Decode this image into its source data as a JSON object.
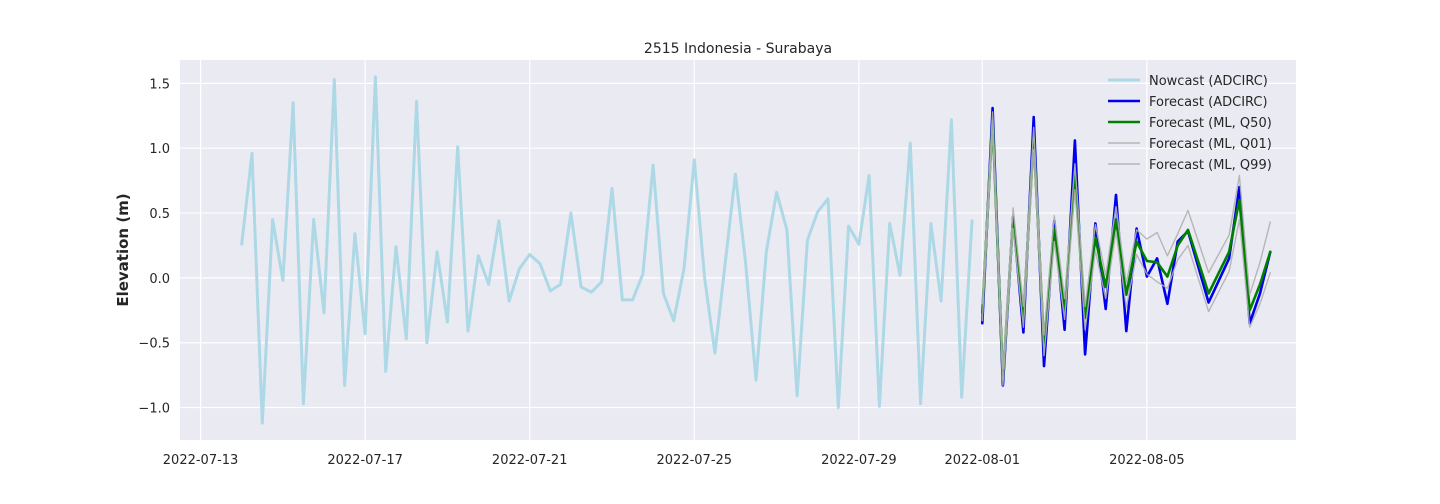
{
  "chart_data": {
    "type": "line",
    "title": "2515 Indonesia - Surabaya",
    "xlabel": "",
    "ylabel": "Elevation (m)",
    "x_ticks": [
      "2022-07-13",
      "2022-07-17",
      "2022-07-21",
      "2022-07-25",
      "2022-07-29",
      "2022-08-01",
      "2022-08-05"
    ],
    "y_ticks": [
      "−1.0",
      "−0.5",
      "0.0",
      "0.5",
      "1.0",
      "1.5"
    ],
    "y_tick_values": [
      -1.0,
      -0.5,
      0.0,
      0.5,
      1.0,
      1.5
    ],
    "xlim": [
      "2022-07-12 12:00",
      "2022-08-08 15:00"
    ],
    "ylim": [
      -1.25,
      1.68
    ],
    "grid": true,
    "legend_position": "top-right",
    "series": [
      {
        "name": "Nowcast (ADCIRC)",
        "color": "#add8e6",
        "width": 3,
        "opacity": 1,
        "x": [
          "2022-07-14 00:00",
          "2022-07-14 06:00",
          "2022-07-14 12:00",
          "2022-07-14 18:00",
          "2022-07-15 00:00",
          "2022-07-15 06:00",
          "2022-07-15 12:00",
          "2022-07-15 18:00",
          "2022-07-16 00:00",
          "2022-07-16 06:00",
          "2022-07-16 12:00",
          "2022-07-16 18:00",
          "2022-07-17 00:00",
          "2022-07-17 06:00",
          "2022-07-17 12:00",
          "2022-07-17 18:00",
          "2022-07-18 00:00",
          "2022-07-18 06:00",
          "2022-07-18 12:00",
          "2022-07-18 18:00",
          "2022-07-19 00:00",
          "2022-07-19 06:00",
          "2022-07-19 12:00",
          "2022-07-19 18:00",
          "2022-07-20 00:00",
          "2022-07-20 06:00",
          "2022-07-20 12:00",
          "2022-07-20 18:00",
          "2022-07-21 00:00",
          "2022-07-21 06:00",
          "2022-07-21 12:00",
          "2022-07-21 18:00",
          "2022-07-22 00:00",
          "2022-07-22 06:00",
          "2022-07-22 12:00",
          "2022-07-22 18:00",
          "2022-07-23 00:00",
          "2022-07-23 06:00",
          "2022-07-23 12:00",
          "2022-07-23 18:00",
          "2022-07-24 00:00",
          "2022-07-24 06:00",
          "2022-07-24 12:00",
          "2022-07-24 18:00",
          "2022-07-25 00:00",
          "2022-07-25 06:00",
          "2022-07-25 12:00",
          "2022-07-26 00:00",
          "2022-07-26 06:00",
          "2022-07-26 12:00",
          "2022-07-26 18:00",
          "2022-07-27 00:00",
          "2022-07-27 06:00",
          "2022-07-27 12:00",
          "2022-07-27 18:00",
          "2022-07-28 00:00",
          "2022-07-28 06:00",
          "2022-07-28 12:00",
          "2022-07-28 18:00",
          "2022-07-29 00:00",
          "2022-07-29 06:00",
          "2022-07-29 12:00",
          "2022-07-29 18:00",
          "2022-07-30 00:00",
          "2022-07-30 06:00",
          "2022-07-30 12:00",
          "2022-07-30 18:00",
          "2022-07-31 00:00",
          "2022-07-31 06:00",
          "2022-07-31 12:00",
          "2022-07-31 18:00"
        ],
        "y": [
          0.26,
          0.96,
          -1.12,
          0.45,
          -0.02,
          1.35,
          -0.97,
          0.45,
          -0.27,
          1.53,
          -0.83,
          0.34,
          -0.43,
          1.55,
          -0.72,
          0.24,
          -0.47,
          1.36,
          -0.5,
          0.2,
          -0.34,
          1.01,
          -0.41,
          0.17,
          -0.05,
          0.44,
          -0.18,
          0.07,
          0.18,
          0.11,
          -0.1,
          -0.05,
          0.5,
          -0.07,
          -0.11,
          -0.03,
          0.69,
          -0.17,
          -0.17,
          0.03,
          0.87,
          -0.12,
          -0.33,
          0.07,
          0.91,
          0.0,
          -0.58,
          0.8,
          0.11,
          -0.79,
          0.2,
          0.66,
          0.37,
          -0.91,
          0.29,
          0.51,
          0.61,
          -1.0,
          0.4,
          0.26,
          0.79,
          -0.99,
          0.42,
          0.02,
          1.04,
          -0.97,
          0.42,
          -0.18,
          1.22,
          -0.92,
          0.44
        ]
      },
      {
        "name": "Forecast (ADCIRC)",
        "color": "#0000ee",
        "width": 2.6,
        "opacity": 1,
        "x": [
          "2022-08-01 00:00",
          "2022-08-01 06:00",
          "2022-08-01 12:00",
          "2022-08-01 18:00",
          "2022-08-02 00:00",
          "2022-08-02 06:00",
          "2022-08-02 12:00",
          "2022-08-02 18:00",
          "2022-08-03 00:00",
          "2022-08-03 06:00",
          "2022-08-03 12:00",
          "2022-08-03 18:00",
          "2022-08-04 00:00",
          "2022-08-04 06:00",
          "2022-08-04 12:00",
          "2022-08-04 18:00",
          "2022-08-05 00:00",
          "2022-08-05 06:00",
          "2022-08-05 12:00",
          "2022-08-05 18:00",
          "2022-08-06 00:00",
          "2022-08-06 12:00",
          "2022-08-07 00:00",
          "2022-08-07 06:00",
          "2022-08-07 12:00",
          "2022-08-07 18:00",
          "2022-08-08 00:00"
        ],
        "y": [
          -0.35,
          1.31,
          -0.83,
          0.47,
          -0.42,
          1.24,
          -0.68,
          0.44,
          -0.4,
          1.06,
          -0.59,
          0.42,
          -0.24,
          0.64,
          -0.41,
          0.38,
          0.01,
          0.15,
          -0.2,
          0.28,
          0.36,
          -0.19,
          0.15,
          0.7,
          -0.35,
          -0.12,
          0.2
        ]
      },
      {
        "name": "Forecast (ML, Q50)",
        "color": "#008000",
        "width": 2.6,
        "opacity": 1,
        "x": [
          "2022-08-01 00:00",
          "2022-08-01 06:00",
          "2022-08-01 12:00",
          "2022-08-01 18:00",
          "2022-08-02 00:00",
          "2022-08-02 06:00",
          "2022-08-02 12:00",
          "2022-08-02 18:00",
          "2022-08-03 00:00",
          "2022-08-03 06:00",
          "2022-08-03 12:00",
          "2022-08-03 18:00",
          "2022-08-04 00:00",
          "2022-08-04 06:00",
          "2022-08-04 12:00",
          "2022-08-04 18:00",
          "2022-08-05 00:00",
          "2022-08-05 06:00",
          "2022-08-05 12:00",
          "2022-08-05 18:00",
          "2022-08-06 00:00",
          "2022-08-06 12:00",
          "2022-08-07 00:00",
          "2022-08-07 06:00",
          "2022-08-07 12:00",
          "2022-08-07 18:00",
          "2022-08-08 00:00"
        ],
        "y": [
          -0.27,
          1.22,
          -0.78,
          0.46,
          -0.3,
          1.08,
          -0.52,
          0.38,
          -0.24,
          0.79,
          -0.31,
          0.31,
          -0.07,
          0.45,
          -0.13,
          0.28,
          0.13,
          0.12,
          0.01,
          0.25,
          0.37,
          -0.12,
          0.2,
          0.6,
          -0.25,
          -0.05,
          0.2
        ]
      },
      {
        "name": "Forecast (ML, Q01)",
        "color": "#b0b0b0",
        "width": 1.4,
        "opacity": 0.9,
        "x": [
          "2022-08-01 00:00",
          "2022-08-01 06:00",
          "2022-08-01 12:00",
          "2022-08-01 18:00",
          "2022-08-02 00:00",
          "2022-08-02 06:00",
          "2022-08-02 12:00",
          "2022-08-02 18:00",
          "2022-08-03 00:00",
          "2022-08-03 06:00",
          "2022-08-03 12:00",
          "2022-08-03 18:00",
          "2022-08-04 00:00",
          "2022-08-04 06:00",
          "2022-08-04 12:00",
          "2022-08-04 18:00",
          "2022-08-05 00:00",
          "2022-08-05 06:00",
          "2022-08-05 12:00",
          "2022-08-05 18:00",
          "2022-08-06 00:00",
          "2022-08-06 12:00",
          "2022-08-07 00:00",
          "2022-08-07 06:00",
          "2022-08-07 12:00",
          "2022-08-07 18:00",
          "2022-08-08 00:00"
        ],
        "y": [
          -0.33,
          1.14,
          -0.83,
          0.38,
          -0.38,
          0.99,
          -0.6,
          0.28,
          -0.32,
          0.68,
          -0.4,
          0.21,
          -0.16,
          0.36,
          -0.23,
          0.18,
          0.03,
          -0.03,
          -0.08,
          0.14,
          0.25,
          -0.26,
          0.05,
          0.45,
          -0.38,
          -0.2,
          0.04
        ]
      },
      {
        "name": "Forecast (ML, Q99)",
        "color": "#b0b0b0",
        "width": 1.4,
        "opacity": 0.9,
        "x": [
          "2022-08-01 00:00",
          "2022-08-01 06:00",
          "2022-08-01 12:00",
          "2022-08-01 18:00",
          "2022-08-02 00:00",
          "2022-08-02 06:00",
          "2022-08-02 12:00",
          "2022-08-02 18:00",
          "2022-08-03 00:00",
          "2022-08-03 06:00",
          "2022-08-03 12:00",
          "2022-08-03 18:00",
          "2022-08-04 00:00",
          "2022-08-04 06:00",
          "2022-08-04 12:00",
          "2022-08-04 18:00",
          "2022-08-05 00:00",
          "2022-08-05 06:00",
          "2022-08-05 12:00",
          "2022-08-05 18:00",
          "2022-08-06 00:00",
          "2022-08-06 12:00",
          "2022-08-07 00:00",
          "2022-08-07 06:00",
          "2022-08-07 12:00",
          "2022-08-07 18:00",
          "2022-08-08 00:00"
        ],
        "y": [
          -0.2,
          1.28,
          -0.7,
          0.54,
          -0.22,
          1.16,
          -0.44,
          0.48,
          -0.16,
          0.88,
          -0.22,
          0.41,
          0.02,
          0.55,
          -0.04,
          0.37,
          0.3,
          0.35,
          0.17,
          0.34,
          0.52,
          0.04,
          0.33,
          0.79,
          -0.13,
          0.12,
          0.43
        ]
      }
    ]
  }
}
